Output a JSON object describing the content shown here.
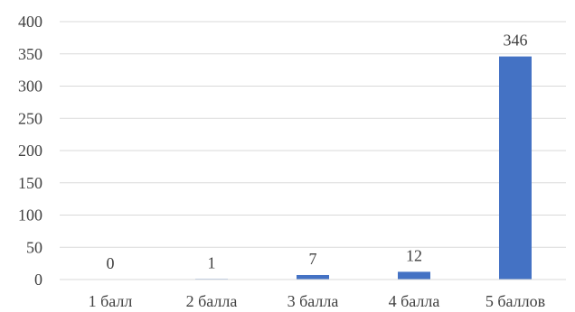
{
  "chart_data": {
    "type": "bar",
    "title": "",
    "xlabel": "",
    "ylabel": "",
    "categories": [
      "1 балл",
      "2 балла",
      "3 балла",
      "4 балла",
      "5 баллов"
    ],
    "values": [
      0,
      1,
      7,
      12,
      346
    ],
    "data_labels": [
      "0",
      "1",
      "7",
      "12",
      "346"
    ],
    "ylim": [
      0,
      400
    ],
    "yticks": [
      0,
      50,
      100,
      150,
      200,
      250,
      300,
      350,
      400
    ],
    "grid": true,
    "legend": "none",
    "bar_color": "#4472c4"
  }
}
